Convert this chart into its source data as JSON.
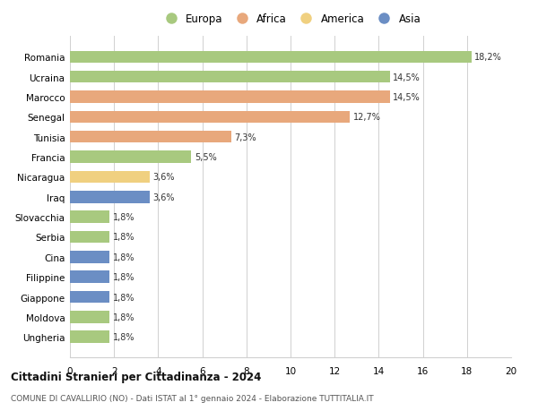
{
  "categories": [
    "Romania",
    "Ucraina",
    "Marocco",
    "Senegal",
    "Tunisia",
    "Francia",
    "Nicaragua",
    "Iraq",
    "Slovacchia",
    "Serbia",
    "Cina",
    "Filippine",
    "Giappone",
    "Moldova",
    "Ungheria"
  ],
  "values": [
    18.2,
    14.5,
    14.5,
    12.7,
    7.3,
    5.5,
    3.6,
    3.6,
    1.8,
    1.8,
    1.8,
    1.8,
    1.8,
    1.8,
    1.8
  ],
  "labels": [
    "18,2%",
    "14,5%",
    "14,5%",
    "12,7%",
    "7,3%",
    "5,5%",
    "3,6%",
    "3,6%",
    "1,8%",
    "1,8%",
    "1,8%",
    "1,8%",
    "1,8%",
    "1,8%",
    "1,8%"
  ],
  "colors": [
    "#a8c97f",
    "#a8c97f",
    "#e8a87c",
    "#e8a87c",
    "#e8a87c",
    "#a8c97f",
    "#f0d080",
    "#6b8ec4",
    "#a8c97f",
    "#a8c97f",
    "#6b8ec4",
    "#6b8ec4",
    "#6b8ec4",
    "#a8c97f",
    "#a8c97f"
  ],
  "legend_labels": [
    "Europa",
    "Africa",
    "America",
    "Asia"
  ],
  "legend_colors": [
    "#a8c97f",
    "#e8a87c",
    "#f0d080",
    "#6b8ec4"
  ],
  "title": "Cittadini Stranieri per Cittadinanza - 2024",
  "subtitle": "COMUNE DI CAVALLIRIO (NO) - Dati ISTAT al 1° gennaio 2024 - Elaborazione TUTTITALIA.IT",
  "xlim": [
    0,
    20
  ],
  "xticks": [
    0,
    2,
    4,
    6,
    8,
    10,
    12,
    14,
    16,
    18,
    20
  ],
  "background_color": "#ffffff",
  "grid_color": "#d0d0d0"
}
